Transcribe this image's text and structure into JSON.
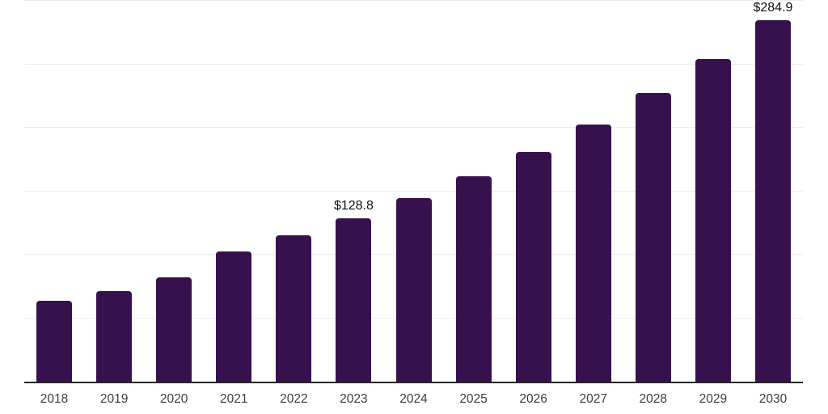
{
  "chart_data": {
    "type": "bar",
    "title": "",
    "xlabel": "",
    "ylabel": "",
    "categories": [
      "2018",
      "2019",
      "2020",
      "2021",
      "2022",
      "2023",
      "2024",
      "2025",
      "2026",
      "2027",
      "2028",
      "2029",
      "2030"
    ],
    "values": [
      64.0,
      71.6,
      82.0,
      102.4,
      115.1,
      128.8,
      144.3,
      161.6,
      181.0,
      202.8,
      227.1,
      254.4,
      284.9
    ],
    "bar_labels": [
      "",
      "",
      "",
      "",
      "",
      "$128.8",
      "",
      "",
      "",
      "",
      "",
      "",
      "$284.9"
    ],
    "ylim": [
      0,
      300
    ],
    "grid_step": 50,
    "grid": true,
    "legend_position": "none",
    "colors": {
      "bar": "#36114E",
      "grid": "#ededed",
      "axis": "#262626",
      "tick_label": "#3d3d3d",
      "value_label": "#111111",
      "background": "#ffffff"
    }
  }
}
